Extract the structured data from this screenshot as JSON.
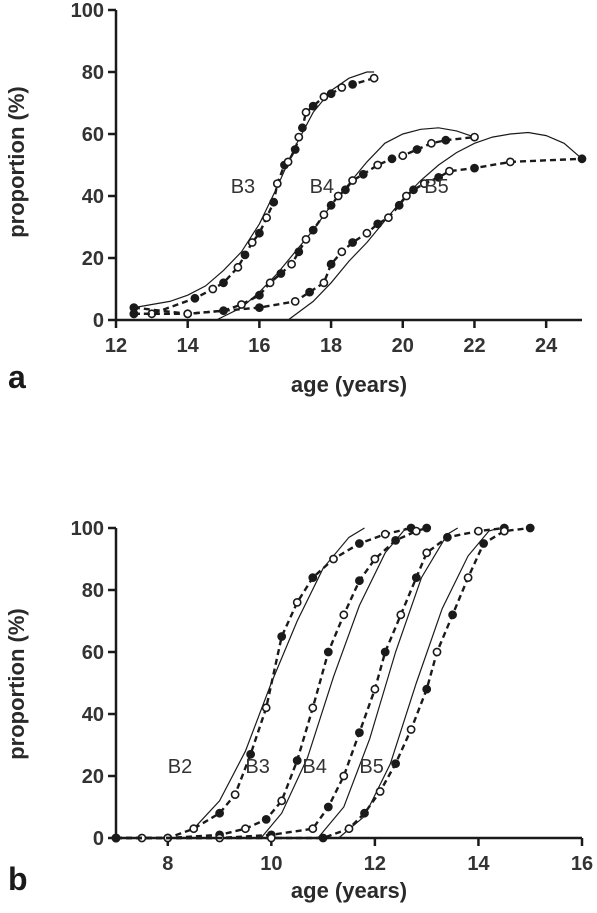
{
  "chart_data": [
    {
      "panel": "a",
      "type": "line",
      "xlabel": "age (years)",
      "ylabel": "proportion (%)",
      "xlim": [
        12,
        25
      ],
      "ylim": [
        0,
        100
      ],
      "xticks": [
        "12",
        "14",
        "16",
        "18",
        "20",
        "22",
        "24"
      ],
      "yticks": [
        "0",
        "20",
        "40",
        "60",
        "80",
        "100"
      ],
      "grid": false,
      "series": [
        {
          "name": "B3",
          "label_pos": [
            15.2,
            41
          ],
          "observed": [
            [
              12.5,
              2
            ],
            [
              13,
              2
            ],
            [
              14.2,
              7
            ],
            [
              14.7,
              10
            ],
            [
              15,
              12
            ],
            [
              15.4,
              17
            ],
            [
              15.6,
              21
            ],
            [
              15.8,
              25
            ],
            [
              16,
              28
            ],
            [
              16.2,
              33
            ],
            [
              16.4,
              38
            ],
            [
              16.5,
              44
            ],
            [
              16.7,
              50
            ],
            [
              16.8,
              51
            ],
            [
              17,
              55
            ],
            [
              17.1,
              59
            ],
            [
              17.2,
              62
            ],
            [
              17.3,
              67
            ],
            [
              17.5,
              69
            ],
            [
              17.8,
              72
            ],
            [
              18,
              73
            ],
            [
              18.3,
              75
            ],
            [
              18.6,
              76
            ],
            [
              19.2,
              78
            ]
          ],
          "fitted": [
            [
              12.5,
              4
            ],
            [
              13,
              5
            ],
            [
              13.5,
              6
            ],
            [
              14,
              8
            ],
            [
              14.5,
              11
            ],
            [
              15,
              16
            ],
            [
              15.5,
              22
            ],
            [
              16,
              31
            ],
            [
              16.5,
              43
            ],
            [
              17,
              56
            ],
            [
              17.5,
              67
            ],
            [
              18,
              74
            ],
            [
              18.5,
              78
            ],
            [
              19,
              80
            ],
            [
              19.2,
              80
            ]
          ]
        },
        {
          "name": "B4",
          "label_pos": [
            17.4,
            41
          ],
          "observed": [
            [
              12.5,
              4
            ],
            [
              14,
              2
            ],
            [
              15,
              3
            ],
            [
              15.5,
              5
            ],
            [
              16,
              8
            ],
            [
              16.3,
              12
            ],
            [
              16.6,
              15
            ],
            [
              16.9,
              18
            ],
            [
              17.1,
              22
            ],
            [
              17.3,
              26
            ],
            [
              17.5,
              29
            ],
            [
              17.8,
              34
            ],
            [
              18,
              37
            ],
            [
              18.2,
              40
            ],
            [
              18.4,
              42
            ],
            [
              18.6,
              45
            ],
            [
              18.9,
              47
            ],
            [
              19.3,
              50
            ],
            [
              19.7,
              52
            ],
            [
              20,
              53
            ],
            [
              20.4,
              55
            ],
            [
              20.8,
              57
            ],
            [
              21.2,
              58
            ],
            [
              22,
              59
            ]
          ],
          "fitted": [
            [
              14.8,
              0
            ],
            [
              15.5,
              4
            ],
            [
              16,
              9
            ],
            [
              16.5,
              15
            ],
            [
              17,
              22
            ],
            [
              17.5,
              29
            ],
            [
              18,
              37
            ],
            [
              18.5,
              44
            ],
            [
              19,
              51
            ],
            [
              19.5,
              57
            ],
            [
              20,
              60
            ],
            [
              20.5,
              61.5
            ],
            [
              21,
              62
            ],
            [
              21.5,
              61
            ],
            [
              22,
              59
            ]
          ]
        },
        {
          "name": "B5",
          "label_pos": [
            20.6,
            41
          ],
          "observed": [
            [
              12.5,
              2
            ],
            [
              14,
              2
            ],
            [
              16,
              4
            ],
            [
              17,
              6
            ],
            [
              17.4,
              9
            ],
            [
              17.8,
              12
            ],
            [
              18,
              18
            ],
            [
              18.3,
              22
            ],
            [
              18.6,
              25
            ],
            [
              19,
              28
            ],
            [
              19.3,
              31
            ],
            [
              19.6,
              33
            ],
            [
              19.9,
              37
            ],
            [
              20.1,
              40
            ],
            [
              20.3,
              42
            ],
            [
              20.6,
              44
            ],
            [
              21,
              46
            ],
            [
              21.3,
              48
            ],
            [
              22,
              49
            ],
            [
              23,
              51
            ],
            [
              25,
              52
            ]
          ],
          "fitted": [
            [
              16.8,
              0
            ],
            [
              17.5,
              6
            ],
            [
              18,
              12
            ],
            [
              18.5,
              19
            ],
            [
              19,
              25
            ],
            [
              19.5,
              32
            ],
            [
              20,
              39
            ],
            [
              20.5,
              45
            ],
            [
              21,
              50
            ],
            [
              21.5,
              54
            ],
            [
              22,
              57
            ],
            [
              22.5,
              59
            ],
            [
              23,
              60
            ],
            [
              23.5,
              60.5
            ],
            [
              24,
              59.5
            ],
            [
              24.5,
              57
            ],
            [
              25,
              52
            ]
          ]
        }
      ]
    },
    {
      "panel": "b",
      "type": "line",
      "xlabel": "age (years)",
      "ylabel": "proportion (%)",
      "xlim": [
        7,
        16
      ],
      "ylim": [
        0,
        100
      ],
      "xticks": [
        "8",
        "10",
        "12",
        "14",
        "16"
      ],
      "yticks": [
        "0",
        "20",
        "40",
        "60",
        "80",
        "100"
      ],
      "grid": false,
      "series": [
        {
          "name": "B2",
          "label_pos": [
            8.0,
            21
          ],
          "observed": [
            [
              7,
              0
            ],
            [
              7.5,
              0
            ],
            [
              8,
              0
            ],
            [
              8.5,
              3
            ],
            [
              9,
              8
            ],
            [
              9.3,
              14
            ],
            [
              9.6,
              27
            ],
            [
              9.9,
              42
            ],
            [
              10.2,
              65
            ],
            [
              10.5,
              76
            ],
            [
              10.8,
              84
            ],
            [
              11.2,
              90
            ],
            [
              11.7,
              95
            ],
            [
              12.2,
              98
            ],
            [
              12.7,
              100
            ]
          ],
          "fitted": [
            [
              8.5,
              3
            ],
            [
              9,
              12
            ],
            [
              9.5,
              28
            ],
            [
              10,
              50
            ],
            [
              10.5,
              70
            ],
            [
              11,
              87
            ],
            [
              11.5,
              97
            ],
            [
              11.8,
              100
            ]
          ]
        },
        {
          "name": "B3",
          "label_pos": [
            9.5,
            21
          ],
          "observed": [
            [
              7,
              0
            ],
            [
              8,
              0
            ],
            [
              9,
              1
            ],
            [
              9.5,
              3
            ],
            [
              9.9,
              6
            ],
            [
              10.2,
              12
            ],
            [
              10.5,
              25
            ],
            [
              10.8,
              42
            ],
            [
              11.1,
              60
            ],
            [
              11.4,
              72
            ],
            [
              11.7,
              83
            ],
            [
              12,
              90
            ],
            [
              12.4,
              96
            ],
            [
              12.8,
              99
            ],
            [
              13,
              100
            ]
          ],
          "fitted": [
            [
              9.8,
              0
            ],
            [
              10.2,
              8
            ],
            [
              10.7,
              26
            ],
            [
              11.2,
              52
            ],
            [
              11.7,
              75
            ],
            [
              12.2,
              92
            ],
            [
              12.6,
              100
            ]
          ]
        },
        {
          "name": "B4",
          "label_pos": [
            10.6,
            21
          ],
          "observed": [
            [
              7,
              0
            ],
            [
              9,
              0
            ],
            [
              10,
              1
            ],
            [
              10.8,
              3
            ],
            [
              11.1,
              10
            ],
            [
              11.4,
              20
            ],
            [
              11.7,
              34
            ],
            [
              12,
              48
            ],
            [
              12.2,
              60
            ],
            [
              12.5,
              72
            ],
            [
              12.8,
              84
            ],
            [
              13,
              92
            ],
            [
              13.4,
              97
            ],
            [
              14,
              99
            ],
            [
              14.5,
              100
            ]
          ],
          "fitted": [
            [
              10.9,
              0
            ],
            [
              11.4,
              10
            ],
            [
              11.9,
              32
            ],
            [
              12.4,
              60
            ],
            [
              12.9,
              84
            ],
            [
              13.4,
              98
            ],
            [
              13.6,
              100
            ]
          ]
        },
        {
          "name": "B5",
          "label_pos": [
            11.7,
            21
          ],
          "observed": [
            [
              7,
              0
            ],
            [
              10,
              0
            ],
            [
              11,
              0
            ],
            [
              11.5,
              3
            ],
            [
              11.8,
              8
            ],
            [
              12.1,
              15
            ],
            [
              12.4,
              24
            ],
            [
              12.7,
              35
            ],
            [
              13,
              48
            ],
            [
              13.2,
              60
            ],
            [
              13.5,
              72
            ],
            [
              13.8,
              84
            ],
            [
              14.1,
              95
            ],
            [
              14.5,
              99
            ],
            [
              15,
              100
            ]
          ],
          "fitted": [
            [
              11.3,
              0
            ],
            [
              11.8,
              7
            ],
            [
              12.3,
              24
            ],
            [
              12.8,
              50
            ],
            [
              13.3,
              74
            ],
            [
              13.8,
              91
            ],
            [
              14.2,
              99
            ],
            [
              14.4,
              100
            ]
          ]
        }
      ]
    }
  ]
}
